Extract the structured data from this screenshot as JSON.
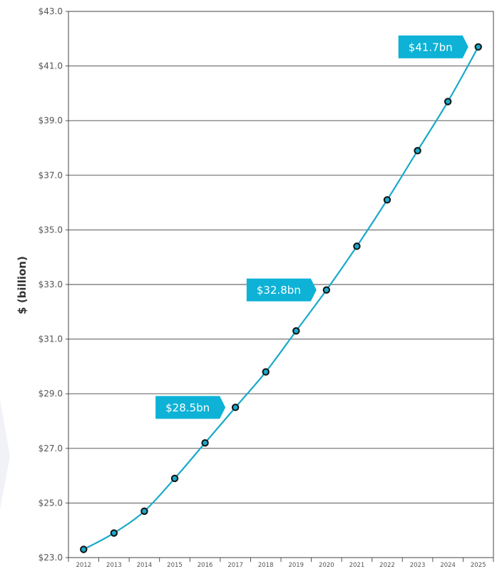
{
  "chart_data": {
    "type": "line",
    "title": "",
    "xlabel": "",
    "ylabel": "$ (billion)",
    "ylim": [
      23,
      43
    ],
    "grid": true,
    "y_ticks": [
      "$23.0",
      "$25.0",
      "$27.0",
      "$29.0",
      "$31.0",
      "$33.0",
      "$35.0",
      "$37.0",
      "$39.0",
      "$41.0",
      "$43.0"
    ],
    "x": [
      "2012",
      "2013",
      "2014",
      "2015",
      "2016",
      "2017",
      "2018",
      "2019",
      "2020",
      "2021",
      "2022",
      "2023",
      "2024",
      "2025"
    ],
    "series": [
      {
        "values": [
          23.3,
          23.9,
          24.7,
          25.9,
          27.2,
          28.5,
          29.8,
          31.3,
          32.8,
          34.4,
          36.1,
          37.9,
          39.7,
          41.7
        ]
      }
    ],
    "annotations": [
      {
        "x": "2017",
        "value": 28.5,
        "label": "$28.5bn"
      },
      {
        "x": "2020",
        "value": 32.8,
        "label": "$32.8bn"
      },
      {
        "x": "2025",
        "value": 41.7,
        "label": "$41.7bn"
      }
    ],
    "colors": {
      "line": "#19a9c9",
      "marker_stroke": "#111111",
      "marker_fill": "#19a9c9",
      "annotation": "#0db2d6",
      "grid": "#444444",
      "background_shape": "#f0f2f7"
    }
  }
}
